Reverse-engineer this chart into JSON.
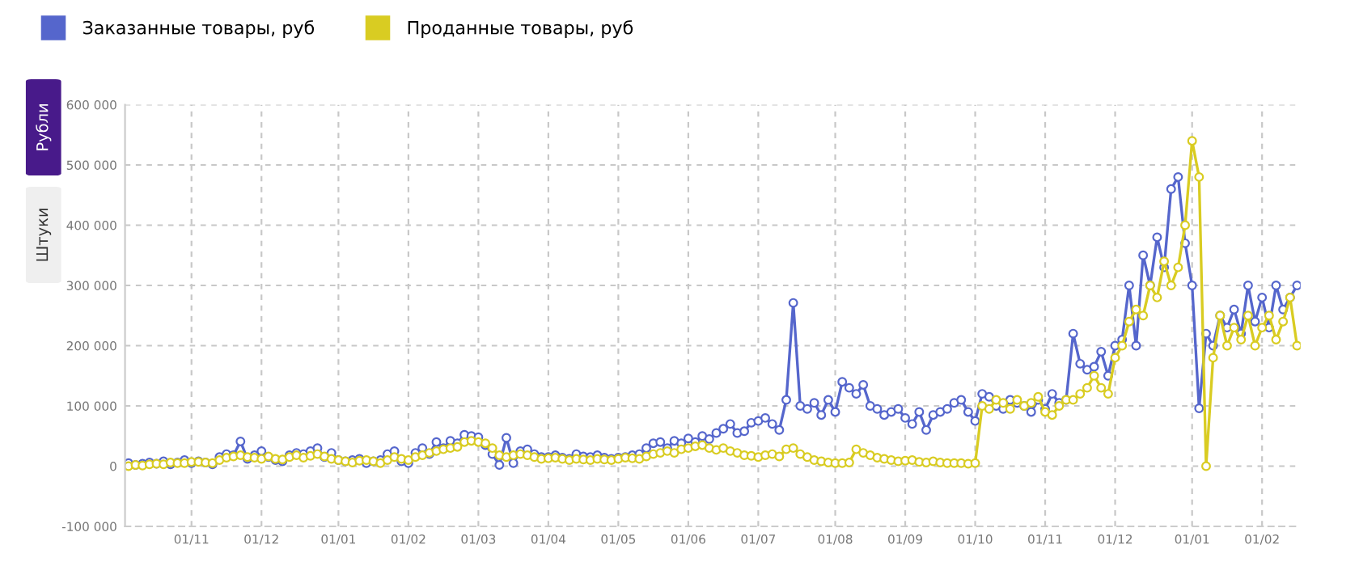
{
  "chart_data": {
    "type": "line",
    "annotations": [
      "Рубли",
      "Штуки"
    ],
    "categories": [
      null,
      null,
      null,
      null,
      null,
      null,
      null,
      null,
      null,
      "01/11",
      null,
      null,
      null,
      null,
      null,
      null,
      null,
      null,
      null,
      "01/12",
      null,
      null,
      null,
      null,
      null,
      null,
      null,
      null,
      null,
      null,
      "01/01",
      null,
      null,
      null,
      null,
      null,
      null,
      null,
      null,
      null,
      "01/02",
      null,
      null,
      null,
      null,
      null,
      null,
      null,
      null,
      null,
      "01/03",
      null,
      null,
      null,
      null,
      null,
      null,
      null,
      null,
      null,
      "01/04",
      null,
      null,
      null,
      null,
      null,
      null,
      null,
      null,
      null,
      "01/05",
      null,
      null,
      null,
      null,
      null,
      null,
      null,
      null,
      null,
      "01/06",
      null,
      null,
      null,
      null,
      null,
      null,
      null,
      null,
      null,
      "01/07",
      null,
      null,
      null,
      null,
      null,
      null,
      null,
      null,
      null,
      null,
      "01/08",
      null,
      null,
      null,
      null,
      null,
      null,
      null,
      null,
      null,
      "01/09",
      null,
      null,
      null,
      null,
      null,
      null,
      null,
      null,
      null,
      "01/10",
      null,
      null,
      null,
      null,
      null,
      null,
      null,
      null,
      null,
      "01/11",
      null,
      null,
      null,
      null,
      null,
      null,
      null,
      null,
      null,
      "01/12",
      null,
      null,
      null,
      null,
      null,
      null,
      null,
      null,
      null,
      null,
      "01/01",
      null,
      null,
      null,
      null,
      null,
      null,
      null,
      null,
      null,
      "01/02",
      null,
      null,
      null,
      null,
      null
    ],
    "ylim": [
      -100000,
      600000
    ],
    "yticks": [
      {
        "value": -100000,
        "label": "-100 000"
      },
      0,
      {
        "value": 100000,
        "label": "100 000"
      },
      {
        "value": 200000,
        "label": "200 000"
      },
      {
        "value": 300000,
        "label": "300 000"
      },
      {
        "value": 400000,
        "label": "400 000"
      },
      {
        "value": 500000,
        "label": "500 000"
      },
      {
        "value": 600000,
        "label": "600 000"
      }
    ],
    "grid": true,
    "legend": "top left",
    "marker": "circle",
    "line_style": "solid",
    "series": [
      {
        "name": "Заказанные товары, руб",
        "color": "#5566cc",
        "values": [
          5000,
          2000,
          4000,
          6000,
          4000,
          8000,
          3000,
          6000,
          10000,
          5000,
          8000,
          6000,
          3000,
          15000,
          20000,
          18000,
          41000,
          12000,
          18000,
          25000,
          15000,
          10000,
          8000,
          18000,
          22000,
          20000,
          25000,
          30000,
          15000,
          22000,
          10000,
          8000,
          10000,
          12000,
          5000,
          8000,
          10000,
          20000,
          25000,
          8000,
          5000,
          22000,
          30000,
          20000,
          40000,
          30000,
          42000,
          38000,
          52000,
          50000,
          48000,
          35000,
          20000,
          2000,
          47000,
          5000,
          25000,
          28000,
          20000,
          15000,
          15000,
          18000,
          14000,
          12000,
          20000,
          16000,
          15000,
          18000,
          14000,
          12000,
          14000,
          15000,
          18000,
          20000,
          30000,
          38000,
          40000,
          30000,
          42000,
          38000,
          46000,
          40000,
          50000,
          45000,
          55000,
          62000,
          70000,
          55000,
          58000,
          72000,
          75000,
          80000,
          70000,
          60000,
          110000,
          271000,
          100000,
          95000,
          105000,
          85000,
          110000,
          90000,
          140000,
          130000,
          120000,
          135000,
          100000,
          95000,
          85000,
          90000,
          95000,
          80000,
          70000,
          90000,
          60000,
          85000,
          90000,
          95000,
          105000,
          110000,
          90000,
          75000,
          120000,
          115000,
          100000,
          95000,
          110000,
          105000,
          100000,
          90000,
          110000,
          95000,
          120000,
          105000,
          110000,
          220000,
          170000,
          160000,
          165000,
          190000,
          150000,
          200000,
          210000,
          300000,
          200000,
          350000,
          300000,
          380000,
          330000,
          460000,
          480000,
          370000,
          300000,
          96000,
          220000,
          200000,
          250000,
          230000,
          260000,
          220000,
          300000,
          240000,
          280000,
          230000,
          300000,
          260000,
          280000,
          300000
        ]
      },
      {
        "name": "Проданные товары, руб",
        "color": "#d9cc22",
        "values": [
          0,
          2000,
          1000,
          3000,
          4000,
          3000,
          6000,
          5000,
          5000,
          7000,
          7000,
          6000,
          5000,
          10000,
          14000,
          16000,
          18000,
          15000,
          14000,
          12000,
          16000,
          12000,
          11000,
          15000,
          18000,
          14000,
          17000,
          20000,
          16000,
          12000,
          10000,
          8000,
          6000,
          9000,
          10000,
          8000,
          5000,
          10000,
          15000,
          12000,
          10000,
          15000,
          18000,
          22000,
          25000,
          28000,
          30000,
          32000,
          40000,
          42000,
          40000,
          38000,
          30000,
          18000,
          15000,
          18000,
          20000,
          18000,
          15000,
          12000,
          13000,
          14000,
          12000,
          10000,
          12000,
          11000,
          10000,
          12000,
          11000,
          10000,
          12000,
          14000,
          13000,
          12000,
          16000,
          20000,
          22000,
          25000,
          22000,
          28000,
          30000,
          33000,
          35000,
          30000,
          27000,
          30000,
          25000,
          22000,
          18000,
          17000,
          15000,
          18000,
          20000,
          16000,
          28000,
          30000,
          20000,
          15000,
          10000,
          8000,
          6000,
          5000,
          5000,
          6000,
          28000,
          22000,
          18000,
          14000,
          12000,
          10000,
          8000,
          9000,
          10000,
          7000,
          6000,
          8000,
          6000,
          5000,
          5000,
          5000,
          4000,
          5000,
          100000,
          95000,
          110000,
          105000,
          95000,
          110000,
          100000,
          105000,
          115000,
          90000,
          85000,
          100000,
          110000,
          110000,
          120000,
          130000,
          150000,
          130000,
          120000,
          180000,
          200000,
          240000,
          260000,
          250000,
          300000,
          280000,
          340000,
          300000,
          330000,
          400000,
          540000,
          480000,
          0,
          180000,
          250000,
          200000,
          230000,
          210000,
          250000,
          200000,
          230000,
          250000,
          210000,
          240000,
          280000,
          200000
        ]
      }
    ]
  }
}
